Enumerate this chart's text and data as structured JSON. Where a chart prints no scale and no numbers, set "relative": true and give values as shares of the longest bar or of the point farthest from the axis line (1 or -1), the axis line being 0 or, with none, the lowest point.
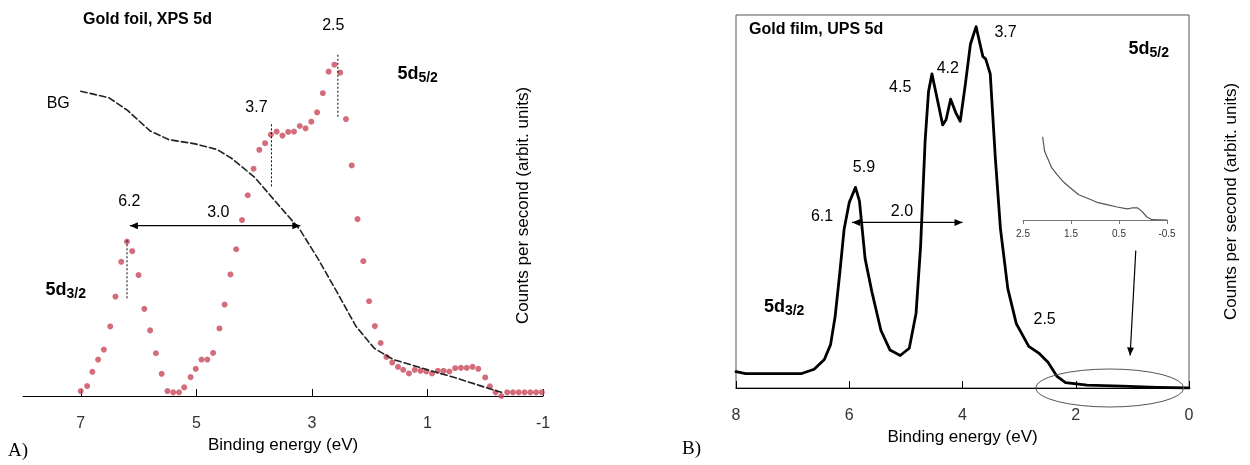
{
  "chart_data": [
    {
      "type": "scatter",
      "title": "Gold foil, XPS 5d",
      "xlabel": "Binding energy (eV)",
      "ylabel": "Counts per second (arbit. units)",
      "relative": true,
      "xlim": [
        8,
        -1
      ],
      "xticks": [
        7,
        5,
        3,
        1,
        -1
      ],
      "series": [
        {
          "color": "#c8485a",
          "marker": "circle",
          "x": [
            7.0,
            6.89,
            6.8,
            6.7,
            6.6,
            6.49,
            6.4,
            6.3,
            6.2,
            6.11,
            6.0,
            5.9,
            5.8,
            5.7,
            5.6,
            5.5,
            5.4,
            5.3,
            5.21,
            5.1,
            5.01,
            4.91,
            4.81,
            4.71,
            4.6,
            4.51,
            4.41,
            4.31,
            4.21,
            4.11,
            4.01,
            3.91,
            3.81,
            3.71,
            3.61,
            3.51,
            3.41,
            3.31,
            3.21,
            3.11,
            3.01,
            2.91,
            2.81,
            2.71,
            2.61,
            2.51,
            2.41,
            2.31,
            2.21,
            2.11,
            2.01,
            1.91,
            1.81,
            1.71,
            1.61,
            1.51,
            1.42,
            1.32,
            1.22,
            1.12,
            1.02,
            0.92,
            0.82,
            0.72,
            0.62,
            0.52,
            0.42,
            0.32,
            0.22,
            0.12,
            0.0,
            -0.08,
            -0.18,
            -0.28,
            -0.38,
            -0.48,
            -0.58,
            -0.68,
            -0.78,
            -0.88,
            -0.98
          ],
          "values": [
            0.015,
            0.03,
            0.073,
            0.11,
            0.14,
            0.21,
            0.3,
            0.405,
            0.466,
            0.437,
            0.365,
            0.263,
            0.198,
            0.129,
            0.067,
            0.015,
            0.011,
            0.011,
            0.026,
            0.057,
            0.082,
            0.11,
            0.11,
            0.13,
            0.204,
            0.276,
            0.367,
            0.443,
            0.531,
            0.606,
            0.686,
            0.743,
            0.763,
            0.789,
            0.798,
            0.786,
            0.797,
            0.798,
            0.815,
            0.808,
            0.828,
            0.856,
            0.914,
            0.979,
            1.0,
            0.976,
            0.836,
            0.696,
            0.534,
            0.407,
            0.286,
            0.211,
            0.16,
            0.118,
            0.101,
            0.088,
            0.079,
            0.068,
            0.079,
            0.076,
            0.074,
            0.068,
            0.076,
            0.076,
            0.074,
            0.084,
            0.085,
            0.085,
            0.088,
            0.082,
            0.056,
            0.029,
            0.011,
            0.0,
            0.011,
            0.011,
            0.011,
            0.011,
            0.011,
            0.011,
            0.011
          ]
        },
        {
          "type": "line",
          "color": "#222222",
          "marker": "none",
          "line_style": "dashed",
          "x": [
            7.0,
            6.51,
            6.19,
            5.8,
            5.48,
            5.02,
            4.64,
            4.38,
            3.99,
            3.6,
            3.21,
            2.89,
            2.56,
            2.24,
            1.92,
            1.59,
            0.94,
            0.49,
            0.0,
            -0.28
          ],
          "values": [
            0.92,
            0.9,
            0.862,
            0.8,
            0.774,
            0.761,
            0.744,
            0.716,
            0.66,
            0.581,
            0.503,
            0.413,
            0.312,
            0.211,
            0.144,
            0.11,
            0.076,
            0.054,
            0.026,
            0.011
          ]
        }
      ],
      "annotations": [
        "2.5",
        "3.7",
        "6.2",
        "3.0",
        "BG",
        "5d$_{3/2}$",
        "5d$_{5/2}$",
        "A)"
      ]
    },
    {
      "type": "line",
      "title": "Gold film, UPS 5d",
      "xlabel": "Binding energy (eV)",
      "ylabel": "Counts per second (arbit. units)",
      "relative": true,
      "xlim": [
        8,
        0
      ],
      "xticks": [
        8,
        6,
        4,
        2,
        0
      ],
      "marker": "none",
      "series": [
        {
          "color": "#000000",
          "x": [
            8.0,
            7.83,
            7.4,
            6.84,
            6.62,
            6.44,
            6.33,
            6.25,
            6.17,
            6.09,
            6.0,
            5.89,
            5.82,
            5.72,
            5.6,
            5.44,
            5.28,
            5.1,
            4.94,
            4.82,
            4.74,
            4.66,
            4.6,
            4.54,
            4.46,
            4.35,
            4.29,
            4.21,
            4.12,
            4.04,
            3.95,
            3.86,
            3.76,
            3.69,
            3.64,
            3.59,
            3.51,
            3.42,
            3.33,
            3.2,
            3.05,
            2.83,
            2.64,
            2.49,
            2.33,
            2.18,
            1.8,
            1.18,
            0.56,
            0.0
          ],
          "values": [
            0.045,
            0.04,
            0.04,
            0.04,
            0.052,
            0.079,
            0.12,
            0.197,
            0.314,
            0.44,
            0.513,
            0.555,
            0.518,
            0.358,
            0.266,
            0.159,
            0.105,
            0.09,
            0.11,
            0.207,
            0.392,
            0.684,
            0.82,
            0.869,
            0.81,
            0.728,
            0.742,
            0.799,
            0.762,
            0.738,
            0.84,
            0.951,
            1.0,
            0.951,
            0.917,
            0.91,
            0.869,
            0.636,
            0.441,
            0.275,
            0.178,
            0.115,
            0.095,
            0.071,
            0.032,
            0.015,
            0.008,
            0.005,
            0.002,
            0.0
          ]
        }
      ],
      "annotations": [
        "3.7",
        "4.2",
        "4.5",
        "5.9",
        "6.1",
        "2.0",
        "2.5",
        "5d$_{3/2}$",
        "5d$_{5/2}$",
        "B)"
      ]
    },
    {
      "type": "line",
      "relative": true,
      "xlim": [
        2.5,
        -0.5
      ],
      "xticks": [
        2.5,
        1.5,
        0.5,
        -0.5
      ],
      "marker": "none",
      "series": [
        {
          "color": "#555555",
          "x": [
            2.09,
            2.05,
            1.96,
            1.9,
            1.79,
            1.65,
            1.51,
            1.34,
            1.17,
            0.96,
            0.75,
            0.54,
            0.33,
            0.23,
            0.11,
            0.02,
            -0.08,
            -0.19,
            -0.5
          ],
          "values": [
            1.0,
            0.827,
            0.707,
            0.627,
            0.546,
            0.454,
            0.386,
            0.305,
            0.265,
            0.213,
            0.185,
            0.157,
            0.133,
            0.145,
            0.145,
            0.104,
            0.036,
            0.004,
            0.0
          ]
        }
      ]
    }
  ]
}
